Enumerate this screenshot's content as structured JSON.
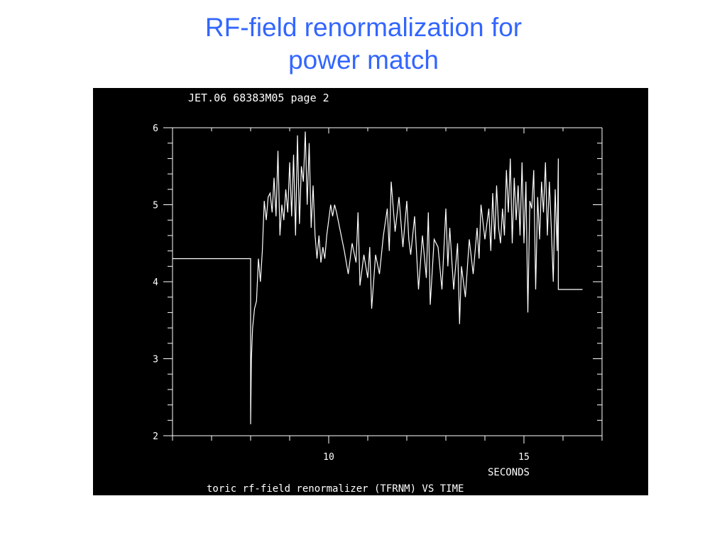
{
  "slide": {
    "title_line1": "RF-field renormalization for",
    "title_line2": "power match"
  },
  "chart_data": {
    "type": "line",
    "header": "JET.06 68383M05 page 2",
    "title": "toric rf-field renormalizer (TFRNM) VS TIME",
    "xlabel": "SECONDS",
    "ylabel": "",
    "xlim": [
      6,
      17
    ],
    "ylim": [
      2,
      6
    ],
    "x_ticks": [
      10,
      15
    ],
    "y_ticks": [
      2,
      3,
      4,
      5,
      6
    ],
    "grid": false,
    "colors": {
      "background": "#000000",
      "line": "#ffffff",
      "title": "#3366ff"
    },
    "series": [
      {
        "x": [
          6.0,
          8.0,
          8.0,
          8.02,
          8.05,
          8.1,
          8.15,
          8.2,
          8.25,
          8.3,
          8.35,
          8.4,
          8.45,
          8.5,
          8.55,
          8.6,
          8.65,
          8.7,
          8.75,
          8.8,
          8.85,
          8.9,
          8.95,
          9.0,
          9.05,
          9.1,
          9.15,
          9.2,
          9.25,
          9.3,
          9.35,
          9.4,
          9.45,
          9.5,
          9.55,
          9.6,
          9.65,
          9.7,
          9.75,
          9.8,
          9.85,
          9.9,
          9.95,
          10.0,
          10.05,
          10.1,
          10.15,
          10.2,
          10.3,
          10.4,
          10.5,
          10.6,
          10.7,
          10.75,
          10.8,
          10.9,
          11.0,
          11.05,
          11.1,
          11.2,
          11.3,
          11.4,
          11.5,
          11.55,
          11.6,
          11.7,
          11.8,
          11.9,
          12.0,
          12.05,
          12.1,
          12.2,
          12.3,
          12.4,
          12.5,
          12.55,
          12.6,
          12.7,
          12.8,
          12.9,
          13.0,
          13.05,
          13.1,
          13.2,
          13.3,
          13.35,
          13.4,
          13.5,
          13.6,
          13.7,
          13.8,
          13.85,
          13.9,
          14.0,
          14.1,
          14.15,
          14.2,
          14.25,
          14.3,
          14.35,
          14.4,
          14.45,
          14.5,
          14.55,
          14.6,
          14.65,
          14.7,
          14.75,
          14.8,
          14.85,
          14.9,
          14.95,
          15.0,
          15.05,
          15.1,
          15.15,
          15.2,
          15.25,
          15.3,
          15.35,
          15.4,
          15.45,
          15.5,
          15.55,
          15.6,
          15.65,
          15.7,
          15.75,
          15.8,
          15.85,
          15.88,
          15.88,
          16.5
        ],
        "values": [
          4.3,
          4.3,
          2.15,
          3.0,
          3.4,
          3.65,
          3.75,
          4.3,
          4.0,
          4.4,
          5.05,
          4.8,
          5.1,
          5.15,
          4.9,
          5.35,
          4.85,
          5.7,
          4.6,
          5.0,
          4.8,
          5.2,
          4.9,
          5.55,
          4.85,
          5.65,
          4.6,
          5.9,
          4.75,
          5.5,
          5.3,
          5.95,
          5.0,
          5.8,
          4.7,
          5.25,
          4.6,
          4.3,
          4.6,
          4.25,
          4.45,
          4.3,
          4.6,
          4.8,
          5.0,
          4.85,
          5.0,
          4.9,
          4.65,
          4.4,
          4.1,
          4.5,
          4.25,
          4.9,
          3.95,
          4.35,
          4.05,
          4.45,
          3.65,
          4.35,
          4.1,
          4.6,
          4.95,
          4.4,
          5.3,
          4.65,
          5.1,
          4.45,
          5.05,
          4.55,
          4.35,
          4.85,
          3.9,
          4.6,
          4.05,
          4.9,
          3.7,
          4.55,
          4.45,
          3.9,
          4.95,
          4.2,
          4.7,
          3.9,
          4.5,
          3.45,
          4.2,
          3.8,
          4.55,
          4.1,
          4.7,
          4.3,
          5.0,
          4.55,
          4.95,
          4.4,
          5.15,
          4.55,
          5.25,
          4.7,
          4.5,
          4.95,
          4.6,
          5.45,
          4.9,
          5.6,
          4.5,
          5.35,
          4.8,
          5.25,
          4.6,
          5.55,
          4.5,
          5.3,
          3.6,
          5.05,
          4.95,
          5.45,
          3.9,
          5.1,
          4.55,
          5.3,
          4.9,
          5.55,
          4.6,
          5.3,
          4.7,
          4.0,
          5.2,
          4.4,
          5.6,
          3.9,
          3.9
        ]
      }
    ]
  }
}
